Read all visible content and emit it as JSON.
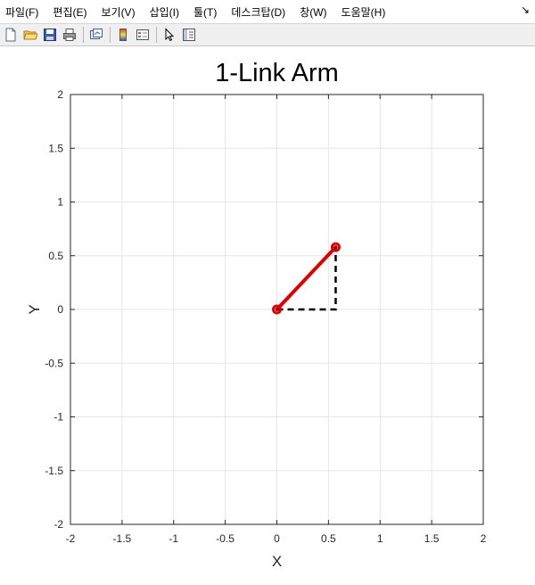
{
  "menubar": {
    "items": [
      {
        "label": "파일(F)"
      },
      {
        "label": "편집(E)"
      },
      {
        "label": "보기(V)"
      },
      {
        "label": "삽입(I)"
      },
      {
        "label": "툴(T)"
      },
      {
        "label": "데스크탑(D)"
      },
      {
        "label": "창(W)"
      },
      {
        "label": "도움말(H)"
      }
    ],
    "dock_arrow": "↘"
  },
  "toolbar": {
    "icons": [
      "new-figure-icon",
      "open-file-icon",
      "save-icon",
      "print-icon",
      "link-plot-icon",
      "colorbar-icon",
      "legend-icon",
      "select-arrow-icon",
      "property-inspector-icon"
    ]
  },
  "chart_data": {
    "type": "line",
    "title": "1-Link Arm",
    "xlabel": "X",
    "ylabel": "Y",
    "xlim": [
      -2,
      2
    ],
    "ylim": [
      -2,
      2
    ],
    "xticks": [
      "-2",
      "-1.5",
      "-1",
      "-0.5",
      "0",
      "0.5",
      "1",
      "1.5",
      "2"
    ],
    "yticks": [
      "2",
      "1.5",
      "1",
      "0.5",
      "0",
      "-0.5",
      "-1",
      "-1.5",
      "-2"
    ],
    "grid": true,
    "colors": {
      "link": "#e00000",
      "projection": "#000000",
      "grid": "#e6e6e6",
      "axis": "#262626"
    },
    "series": [
      {
        "kind": "link",
        "points": [
          {
            "x": 0,
            "y": 0
          },
          {
            "x": 0.57,
            "y": 0.58
          }
        ],
        "style": "solid"
      },
      {
        "kind": "projection",
        "points": [
          {
            "x": 0,
            "y": 0
          },
          {
            "x": 0.57,
            "y": 0
          },
          {
            "x": 0.57,
            "y": 0.58
          }
        ],
        "style": "dashed"
      }
    ],
    "joints": [
      {
        "x": 0,
        "y": 0
      },
      {
        "x": 0.57,
        "y": 0.58
      }
    ]
  }
}
